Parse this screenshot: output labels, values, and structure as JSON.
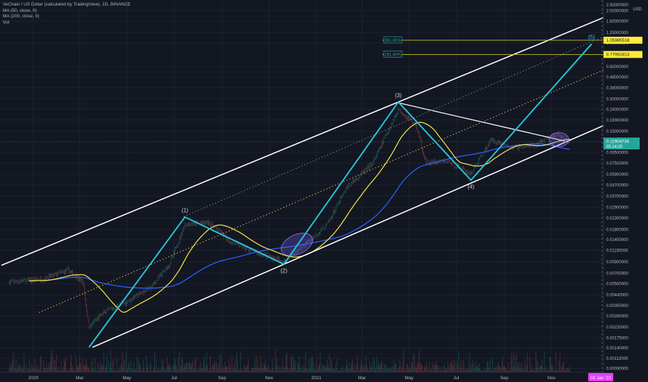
{
  "legend": {
    "title": "VeChain / US Dollar (calculated by TradingView), 1D, BINANCE",
    "ma50": "MA (50, close, 0)",
    "ma200": "MA (200, close, 0)",
    "vol": "Vol"
  },
  "colors": {
    "background": "#131722",
    "channel": "#ffffff",
    "wave": "#26c6da",
    "ma50": "#f1e04b",
    "ma200": "#2962ff",
    "fib_line": "#c3c62a",
    "price_tag": "#26a69a",
    "date_tag": "#e040fb"
  },
  "chart_data": {
    "type": "line",
    "scale": "log",
    "currency": "USD",
    "y_ticks": [
      2.0,
      1.6,
      1.25,
      1.0,
      0.6,
      0.48,
      0.38,
      0.3,
      0.24,
      0.19,
      0.15,
      0.095,
      0.075,
      0.059,
      0.047,
      0.037,
      0.029,
      0.023,
      0.018,
      0.0145,
      0.0115,
      0.009,
      0.007,
      0.0056,
      0.0044,
      0.0035,
      0.0028,
      0.0022,
      0.00175,
      0.0014,
      0.00112,
      0.0009
    ],
    "y_tick_labels": [
      "2.00000000",
      "1.60000000",
      "1.25000000",
      "1.00000000",
      "0.60000000",
      "0.48000000",
      "0.38000000",
      "0.30000000",
      "0.24000000",
      "0.19000000",
      "0.15000000",
      "0.09500000",
      "0.07500000",
      "0.05900000",
      "0.04700000",
      "0.03700000",
      "0.02900000",
      "0.02300000",
      "0.01800000",
      "0.01450000",
      "0.01150000",
      "0.00900000",
      "0.00700000",
      "0.00560000",
      "0.00440000",
      "0.00350000",
      "0.00280000",
      "0.00220000",
      "0.00175000",
      "0.00140000",
      "0.00112000",
      "0.00090000"
    ],
    "top_tick_label": "2.50000000",
    "x_ticks": [
      {
        "label": "2020",
        "date": "2020-01-01"
      },
      {
        "label": "Mar",
        "date": "2020-03-01"
      },
      {
        "label": "May",
        "date": "2020-05-01"
      },
      {
        "label": "Jul",
        "date": "2020-07-01"
      },
      {
        "label": "Sep",
        "date": "2020-09-01"
      },
      {
        "label": "Nov",
        "date": "2020-11-01"
      },
      {
        "label": "2021",
        "date": "2021-01-01"
      },
      {
        "label": "Mar",
        "date": "2021-03-01"
      },
      {
        "label": "May",
        "date": "2021-05-01"
      },
      {
        "label": "Jul",
        "date": "2021-07-01"
      },
      {
        "label": "Sep",
        "date": "2021-09-01"
      },
      {
        "label": "Nov",
        "date": "2021-11-01"
      }
    ],
    "date_marker": {
      "label": "02 Jan '22",
      "date": "2022-01-02"
    },
    "price_tags": [
      {
        "label": "1.05985518",
        "value": 1.06
      },
      {
        "label": "0.77992813",
        "value": 0.78
      }
    ],
    "current_price": {
      "label": "0.11904734",
      "value": 0.119,
      "countdown": "05:14:20"
    },
    "fib_levels": [
      {
        "label": "361.80%",
        "value": 1.06
      },
      {
        "label": "261.80%",
        "value": 0.78
      }
    ],
    "waves": [
      {
        "label": "(1)",
        "date": "2020-07-15",
        "value": 0.0235
      },
      {
        "label": "(2)",
        "date": "2020-11-20",
        "value": 0.0085
      },
      {
        "label": "(3)",
        "date": "2021-04-17",
        "value": 0.28
      },
      {
        "label": "(4)",
        "date": "2021-07-20",
        "value": 0.052
      },
      {
        "label": "(5)",
        "date": "2021-12-23",
        "value": 0.98
      }
    ]
  }
}
